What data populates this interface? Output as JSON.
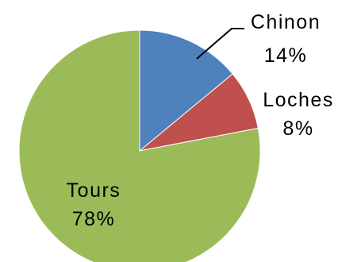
{
  "chart_data": {
    "type": "pie",
    "slices": [
      {
        "label": "Chinon",
        "value": 14,
        "value_label": "14%",
        "color": "#4F81BD"
      },
      {
        "label": "Loches",
        "value": 8,
        "value_label": "8%",
        "color": "#C0504D"
      },
      {
        "label": "Tours",
        "value": 78,
        "value_label": "78%",
        "color": "#9BBB59"
      }
    ],
    "start_angle": "12 o'clock",
    "direction": "clockwise",
    "legend": "none",
    "data_labels": "category and percentage",
    "leader_lines": [
      "Chinon"
    ]
  }
}
